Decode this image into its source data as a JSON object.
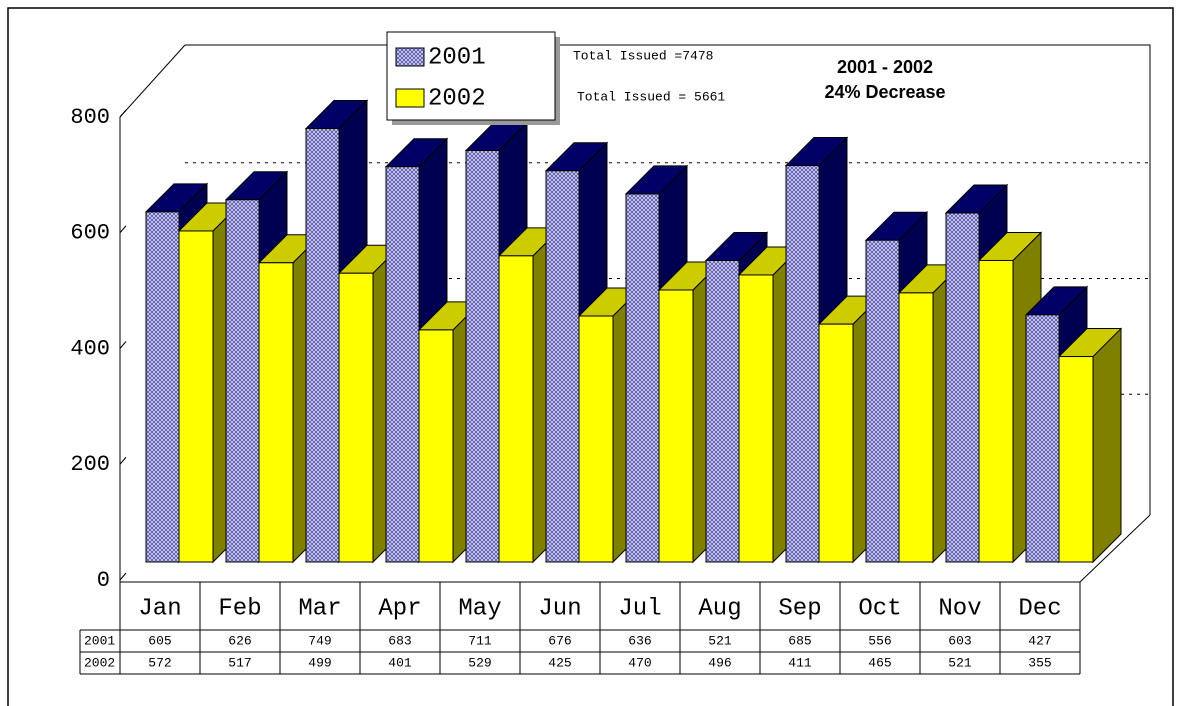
{
  "chart_data": {
    "type": "bar3d",
    "categories": [
      "Jan",
      "Feb",
      "Mar",
      "Apr",
      "May",
      "Jun",
      "Jul",
      "Aug",
      "Sep",
      "Oct",
      "Nov",
      "Dec"
    ],
    "series": [
      {
        "name": "2001",
        "color": "#b4b4e6",
        "values": [
          605,
          626,
          749,
          683,
          711,
          676,
          636,
          521,
          685,
          556,
          603,
          427
        ]
      },
      {
        "name": "2002",
        "color": "#ffff00",
        "values": [
          572,
          517,
          499,
          401,
          529,
          425,
          470,
          496,
          411,
          465,
          521,
          355
        ]
      }
    ],
    "ylim": [
      0,
      800
    ],
    "yticks": [
      0,
      200,
      400,
      600,
      800
    ],
    "grid": true,
    "annotations": [
      "Total Issued =7478",
      "Total Issued = 5661",
      "2001 - 2002",
      "24% Decrease"
    ],
    "legend": "top-left"
  }
}
